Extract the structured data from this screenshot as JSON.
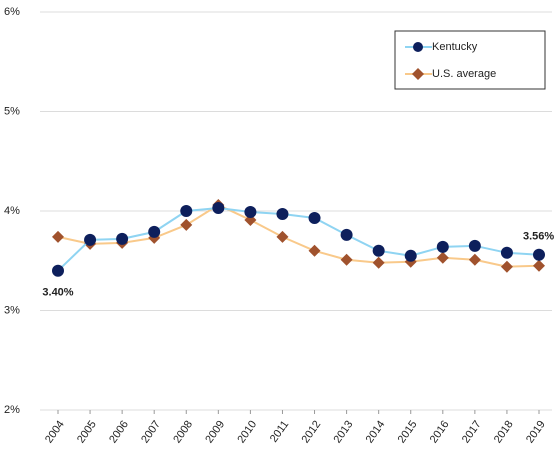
{
  "chart_data": {
    "type": "line",
    "categories": [
      "2004",
      "2005",
      "2006",
      "2007",
      "2008",
      "2009",
      "2010",
      "2011",
      "2012",
      "2013",
      "2014",
      "2015",
      "2016",
      "2017",
      "2018",
      "2019"
    ],
    "series": [
      {
        "name": "Kentucky",
        "color": "#8fd4f2",
        "marker_color": "#0d1f5c",
        "marker": "circle",
        "values": [
          3.4,
          3.71,
          3.72,
          3.79,
          4.0,
          4.03,
          3.99,
          3.97,
          3.93,
          3.76,
          3.6,
          3.55,
          3.64,
          3.65,
          3.58,
          3.56
        ],
        "value_labels": [
          "3.40%",
          null,
          null,
          null,
          null,
          null,
          null,
          null,
          null,
          null,
          null,
          null,
          null,
          null,
          null,
          "3.56%"
        ]
      },
      {
        "name": "U.S. average",
        "color": "#f9c98a",
        "marker_color": "#a0522d",
        "marker": "diamond",
        "values": [
          3.74,
          3.67,
          3.68,
          3.73,
          3.86,
          4.06,
          3.91,
          3.74,
          3.6,
          3.51,
          3.48,
          3.49,
          3.53,
          3.51,
          3.44,
          3.45
        ]
      }
    ],
    "ylim": [
      2,
      6
    ],
    "yticks": [
      {
        "value": 2,
        "label": "2%"
      },
      {
        "value": 3,
        "label": "3%"
      },
      {
        "value": 4,
        "label": "4%"
      },
      {
        "value": 5,
        "label": "5%"
      },
      {
        "value": 6,
        "label": "6%"
      }
    ],
    "grid": true,
    "legend": "upper right"
  }
}
